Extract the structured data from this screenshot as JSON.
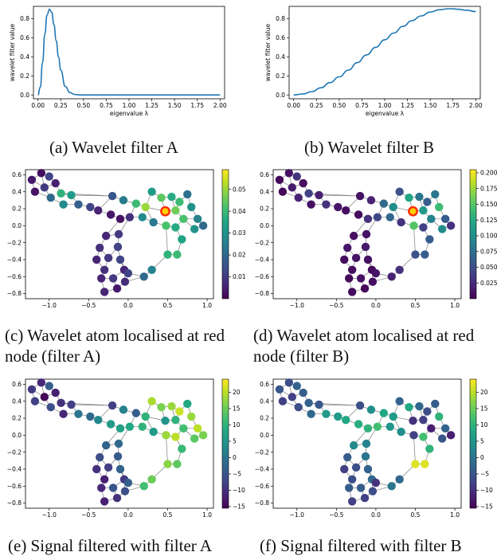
{
  "captions": {
    "a": "(a) Wavelet filter A",
    "b": "(b) Wavelet filter B",
    "c1": "(c) Wavelet atom localised at red",
    "c2": "node (filter A)",
    "d1": "(d) Wavelet atom localised at red",
    "d2": "node (filter B)",
    "e": "(e) Signal filtered with filter A",
    "f": "(f) Signal filtered with filter B"
  },
  "chart_data": [
    {
      "id": "filterA",
      "type": "line",
      "xlabel": "eigenvalue λ",
      "ylabel": "wavelet filter value",
      "xlim": [
        -0.05,
        2.05
      ],
      "ylim": [
        -0.04,
        0.93
      ],
      "xticks": [
        0.0,
        0.25,
        0.5,
        0.75,
        1.0,
        1.25,
        1.5,
        1.75,
        2.0
      ],
      "yticks": [
        0.0,
        0.2,
        0.4,
        0.6,
        0.8
      ],
      "x": [
        0.0,
        0.025,
        0.05,
        0.075,
        0.1,
        0.125,
        0.15,
        0.175,
        0.2,
        0.225,
        0.25,
        0.3,
        0.35,
        0.4,
        0.45,
        0.5,
        0.6,
        0.8,
        1.0,
        1.5,
        2.0
      ],
      "y": [
        0.0,
        0.08,
        0.34,
        0.64,
        0.84,
        0.9,
        0.87,
        0.74,
        0.57,
        0.4,
        0.26,
        0.09,
        0.025,
        0.006,
        0.001,
        0.0,
        0.0,
        0.0,
        0.0,
        0.0,
        0.0
      ],
      "color": "#1f77b4"
    },
    {
      "id": "filterB",
      "type": "line",
      "xlabel": "eigenvalue λ",
      "ylabel": "wavelet filter value",
      "xlim": [
        -0.05,
        2.05
      ],
      "ylim": [
        -0.04,
        0.93
      ],
      "xticks": [
        0.0,
        0.25,
        0.5,
        0.75,
        1.0,
        1.25,
        1.5,
        1.75,
        2.0
      ],
      "yticks": [
        0.0,
        0.2,
        0.4,
        0.6,
        0.8
      ],
      "x": [
        0.0,
        0.1,
        0.2,
        0.3,
        0.4,
        0.5,
        0.6,
        0.7,
        0.8,
        0.9,
        1.0,
        1.1,
        1.2,
        1.3,
        1.4,
        1.5,
        1.6,
        1.7,
        1.75,
        1.8,
        1.9,
        2.0
      ],
      "y": [
        0.0,
        0.01,
        0.035,
        0.075,
        0.13,
        0.19,
        0.26,
        0.34,
        0.42,
        0.5,
        0.58,
        0.65,
        0.72,
        0.78,
        0.83,
        0.87,
        0.895,
        0.905,
        0.905,
        0.9,
        0.89,
        0.875
      ],
      "color": "#1f77b4"
    }
  ],
  "graph": {
    "xlim": [
      -1.3,
      1.08
    ],
    "ylim": [
      -0.86,
      0.66
    ],
    "xticks": [
      -1.0,
      -0.5,
      0.0,
      0.5,
      1.0
    ],
    "yticks": [
      0.6,
      0.4,
      0.2,
      0.0,
      -0.2,
      -0.4,
      -0.6,
      -0.8
    ],
    "xtick_labels": [
      "−1.0",
      "−0.5",
      "0.0",
      "0.5",
      "1.0"
    ],
    "ytick_labels": [
      "0.6",
      "0.4",
      "0.2",
      "0.0",
      "−0.2",
      "−0.4",
      "−0.6",
      "−0.8"
    ],
    "nodes": [
      [
        -1.22,
        0.54
      ],
      [
        -1.1,
        0.62
      ],
      [
        -1.0,
        0.58
      ],
      [
        -1.18,
        0.4
      ],
      [
        -1.06,
        0.45
      ],
      [
        -0.92,
        0.5
      ],
      [
        -0.98,
        0.33
      ],
      [
        -0.85,
        0.38
      ],
      [
        -0.72,
        0.36
      ],
      [
        -0.82,
        0.25
      ],
      [
        -0.63,
        0.25
      ],
      [
        -0.48,
        0.22
      ],
      [
        -0.38,
        0.18
      ],
      [
        -0.22,
        0.13
      ],
      [
        -0.1,
        0.08
      ],
      [
        0.02,
        0.1
      ],
      [
        -0.2,
        0.35
      ],
      [
        -0.06,
        0.3
      ],
      [
        0.1,
        0.26
      ],
      [
        0.22,
        0.22
      ],
      [
        0.3,
        0.4
      ],
      [
        0.42,
        0.33
      ],
      [
        0.55,
        0.34
      ],
      [
        0.65,
        0.28
      ],
      [
        0.75,
        0.37
      ],
      [
        0.8,
        0.22
      ],
      [
        0.6,
        0.18
      ],
      [
        0.7,
        0.08
      ],
      [
        0.88,
        0.08
      ],
      [
        0.95,
        0.0
      ],
      [
        0.84,
        -0.04
      ],
      [
        0.6,
        -0.02
      ],
      [
        0.48,
        0.0
      ],
      [
        0.18,
        0.1
      ],
      [
        0.32,
        0.04
      ],
      [
        -0.12,
        -0.1
      ],
      [
        -0.28,
        -0.12
      ],
      [
        -0.36,
        -0.26
      ],
      [
        -0.13,
        -0.25
      ],
      [
        -0.4,
        -0.4
      ],
      [
        -0.25,
        -0.38
      ],
      [
        -0.1,
        -0.4
      ],
      [
        -0.3,
        -0.52
      ],
      [
        -0.05,
        -0.52
      ],
      [
        -0.19,
        -0.62
      ],
      [
        -0.34,
        -0.62
      ],
      [
        -0.14,
        -0.74
      ],
      [
        -0.04,
        -0.66
      ],
      [
        0.0,
        -0.56
      ],
      [
        -0.3,
        -0.78
      ],
      [
        0.2,
        -0.6
      ],
      [
        0.3,
        -0.52
      ],
      [
        0.5,
        -0.34
      ],
      [
        0.62,
        -0.34
      ],
      [
        0.68,
        -0.16
      ],
      [
        0.47,
        0.17
      ]
    ],
    "edges": [
      [
        0,
        1
      ],
      [
        1,
        2
      ],
      [
        0,
        3
      ],
      [
        0,
        4
      ],
      [
        1,
        4
      ],
      [
        2,
        5
      ],
      [
        4,
        5
      ],
      [
        3,
        6
      ],
      [
        4,
        6
      ],
      [
        5,
        7
      ],
      [
        6,
        9
      ],
      [
        7,
        8
      ],
      [
        8,
        10
      ],
      [
        9,
        10
      ],
      [
        10,
        11
      ],
      [
        11,
        12
      ],
      [
        12,
        13
      ],
      [
        13,
        14
      ],
      [
        14,
        15
      ],
      [
        7,
        16
      ],
      [
        8,
        16
      ],
      [
        16,
        17
      ],
      [
        17,
        18
      ],
      [
        18,
        19
      ],
      [
        15,
        18
      ],
      [
        15,
        33
      ],
      [
        33,
        34
      ],
      [
        19,
        20
      ],
      [
        20,
        21
      ],
      [
        21,
        22
      ],
      [
        22,
        23
      ],
      [
        23,
        24
      ],
      [
        24,
        25
      ],
      [
        22,
        26
      ],
      [
        21,
        55
      ],
      [
        55,
        26
      ],
      [
        26,
        27
      ],
      [
        27,
        28
      ],
      [
        25,
        28
      ],
      [
        28,
        29
      ],
      [
        29,
        30
      ],
      [
        30,
        27
      ],
      [
        27,
        31
      ],
      [
        31,
        32
      ],
      [
        32,
        34
      ],
      [
        34,
        19
      ],
      [
        19,
        55
      ],
      [
        15,
        35
      ],
      [
        14,
        36
      ],
      [
        35,
        36
      ],
      [
        36,
        37
      ],
      [
        35,
        38
      ],
      [
        37,
        39
      ],
      [
        37,
        40
      ],
      [
        38,
        40
      ],
      [
        38,
        41
      ],
      [
        39,
        42
      ],
      [
        40,
        42
      ],
      [
        41,
        43
      ],
      [
        42,
        45
      ],
      [
        43,
        44
      ],
      [
        44,
        45
      ],
      [
        44,
        46
      ],
      [
        43,
        47
      ],
      [
        41,
        48
      ],
      [
        45,
        49
      ],
      [
        46,
        49
      ],
      [
        46,
        47
      ],
      [
        47,
        50
      ],
      [
        48,
        50
      ],
      [
        50,
        51
      ],
      [
        51,
        52
      ],
      [
        52,
        53
      ],
      [
        53,
        54
      ],
      [
        54,
        31
      ],
      [
        32,
        52
      ],
      [
        12,
        16
      ],
      [
        23,
        26
      ]
    ],
    "center_node": 55,
    "atom_A": [
      0.004,
      0.002,
      0.012,
      0.003,
      0.01,
      0.005,
      0.02,
      0.038,
      0.032,
      0.028,
      0.018,
      0.012,
      0.006,
      0.004,
      0.003,
      0.008,
      0.016,
      0.024,
      0.04,
      0.05,
      0.032,
      0.044,
      0.036,
      0.04,
      0.022,
      0.03,
      0.046,
      0.042,
      0.026,
      0.02,
      0.03,
      0.036,
      0.042,
      0.028,
      0.024,
      0.01,
      0.006,
      0.008,
      0.012,
      0.006,
      0.01,
      0.012,
      0.008,
      0.006,
      0.01,
      0.006,
      0.004,
      0.008,
      0.012,
      0.006,
      0.02,
      0.026,
      0.038,
      0.04,
      0.034,
      0.058
    ],
    "atom_B": [
      0.005,
      0.01,
      0.03,
      0.004,
      0.015,
      0.008,
      0.02,
      0.04,
      0.018,
      0.01,
      0.03,
      0.012,
      0.008,
      0.006,
      0.03,
      0.045,
      0.01,
      0.02,
      0.07,
      0.1,
      0.05,
      0.12,
      0.08,
      0.06,
      0.08,
      0.14,
      0.11,
      0.09,
      0.06,
      0.03,
      0.1,
      0.04,
      0.15,
      0.07,
      0.03,
      0.01,
      0.008,
      0.012,
      0.015,
      0.006,
      0.012,
      0.01,
      0.008,
      0.006,
      0.01,
      0.005,
      0.004,
      0.008,
      0.012,
      0.006,
      0.02,
      0.03,
      0.05,
      0.06,
      0.06,
      0.205
    ],
    "signal_A": [
      -9,
      -11,
      -4,
      -8,
      -15,
      -12,
      -6,
      -10,
      -8,
      -11,
      0,
      -2,
      3,
      6,
      7,
      8,
      -8,
      2,
      -4,
      10,
      19,
      16,
      18,
      21,
      8,
      18,
      10,
      12,
      20,
      16,
      14,
      20,
      18,
      10,
      6,
      -2,
      -3,
      -6,
      -4,
      -10,
      -8,
      -3,
      -12,
      -9,
      -5,
      -11,
      -10,
      -6,
      -4,
      -12,
      12,
      15,
      17,
      14,
      11,
      5
    ],
    "signal_B": [
      -5,
      -6,
      -3,
      -8,
      -8,
      -4,
      -6,
      -3,
      -5,
      -2,
      6,
      6,
      8,
      9,
      10,
      12,
      -6,
      4,
      8,
      6,
      -3,
      8,
      -2,
      -6,
      -4,
      10,
      -8,
      -12,
      -3,
      -12,
      -5,
      12,
      -8,
      5,
      4,
      2,
      3,
      -4,
      0,
      -8,
      -6,
      -3,
      -6,
      -2,
      -4,
      -4,
      -8,
      -6,
      -10,
      -8,
      0,
      -2,
      22,
      22,
      10,
      -10
    ],
    "colorbars": {
      "c": {
        "min": 0.0,
        "max": 0.059,
        "ticks": [
          0.01,
          0.02,
          0.03,
          0.04,
          0.05
        ],
        "labels": [
          "0.01",
          "0.02",
          "0.03",
          "0.04",
          "0.05"
        ]
      },
      "d": {
        "min": 0.0,
        "max": 0.205,
        "ticks": [
          0.025,
          0.05,
          0.075,
          0.1,
          0.125,
          0.15,
          0.175,
          0.2
        ],
        "labels": [
          "0.025",
          "0.050",
          "0.075",
          "0.100",
          "0.125",
          "0.150",
          "0.175",
          "0.200"
        ]
      },
      "e": {
        "min": -15.5,
        "max": 24,
        "ticks": [
          -15,
          -10,
          -5,
          0,
          5,
          10,
          15,
          20
        ],
        "labels": [
          "−15",
          "−10",
          "−5",
          "0",
          "5",
          "10",
          "15",
          "20"
        ]
      },
      "f": {
        "min": -15.5,
        "max": 24,
        "ticks": [
          -15,
          -10,
          -5,
          0,
          5,
          10,
          15,
          20
        ],
        "labels": [
          "−15",
          "−10",
          "−5",
          "0",
          "5",
          "10",
          "15",
          "20"
        ]
      }
    },
    "colormap": "viridis",
    "edge_color": "#808080",
    "highlight_color": "#ff2a00",
    "highlight_ring": "#ffd000"
  }
}
